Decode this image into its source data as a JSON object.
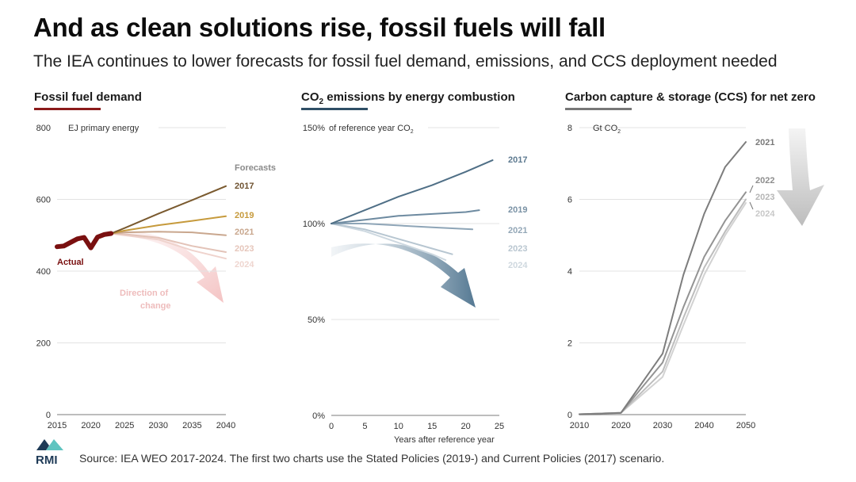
{
  "header": {
    "title": "And as clean solutions rise, fossil fuels will fall",
    "subtitle": "The IEA continues to lower forecasts for fossil fuel demand, emissions, and CCS deployment needed"
  },
  "footer": {
    "logo_text": "RMI",
    "source": "Source: IEA WEO 2017-2024. The first two charts use the Stated Policies (2019-) and Current Policies (2017) scenario."
  },
  "colors": {
    "fossil_accent": "#8b1a1a",
    "co2_accent": "#3b5f78",
    "ccs_accent": "#777777"
  },
  "chart_data": [
    {
      "id": "fossil",
      "type": "line",
      "title": "Fossil fuel demand",
      "ylabel": "EJ primary energy",
      "xlabel": "",
      "xlim": [
        2015,
        2040
      ],
      "ylim": [
        0,
        800
      ],
      "x_ticks": [
        "2015",
        "2020",
        "2025",
        "2030",
        "2035",
        "2040"
      ],
      "y_ticks": [
        "0",
        "200",
        "400",
        "600",
        "800"
      ],
      "grid": true,
      "annotations": [
        "Forecasts",
        "Actual",
        "Direction of",
        "change"
      ],
      "series": [
        {
          "name": "Actual",
          "color": "#7a1010",
          "x": [
            2015,
            2016,
            2017,
            2018,
            2019,
            2020,
            2021,
            2022,
            2023
          ],
          "y": [
            468,
            470,
            480,
            490,
            494,
            465,
            495,
            502,
            505
          ]
        },
        {
          "name": "2017",
          "color": "#7a5a2f",
          "x": [
            2023,
            2025,
            2030,
            2035,
            2040
          ],
          "y": [
            505,
            520,
            560,
            598,
            637
          ]
        },
        {
          "name": "2019",
          "color": "#c69a3c",
          "x": [
            2023,
            2025,
            2030,
            2035,
            2040
          ],
          "y": [
            505,
            513,
            528,
            540,
            553
          ]
        },
        {
          "name": "2021",
          "color": "#c9a78e",
          "x": [
            2023,
            2025,
            2030,
            2035,
            2040
          ],
          "y": [
            505,
            508,
            510,
            508,
            500
          ]
        },
        {
          "name": "2023",
          "color": "#e3c3b8",
          "x": [
            2023,
            2025,
            2030,
            2035,
            2040
          ],
          "y": [
            505,
            503,
            493,
            470,
            453
          ]
        },
        {
          "name": "2024",
          "color": "#efd3cd",
          "x": [
            2023,
            2025,
            2030,
            2035,
            2040
          ],
          "y": [
            505,
            500,
            488,
            458,
            435
          ]
        }
      ]
    },
    {
      "id": "co2",
      "type": "line",
      "title": "CO2 emissions by energy combustion",
      "ylabel": "of reference year CO2",
      "xlabel": "Years after reference year",
      "xlim": [
        0,
        25
      ],
      "ylim": [
        0,
        150
      ],
      "x_ticks": [
        "0",
        "5",
        "10",
        "15",
        "20",
        "25"
      ],
      "y_ticks": [
        "0%",
        "50%",
        "100%",
        "150%"
      ],
      "grid": true,
      "series": [
        {
          "name": "2017",
          "color": "#4f6f86",
          "x": [
            0,
            5,
            10,
            15,
            20,
            24
          ],
          "y": [
            100,
            107,
            114,
            120,
            127,
            133
          ]
        },
        {
          "name": "2019",
          "color": "#6d8aa0",
          "x": [
            0,
            5,
            10,
            15,
            20,
            22
          ],
          "y": [
            100,
            102,
            104,
            105,
            106,
            107
          ]
        },
        {
          "name": "2021",
          "color": "#8ea5b7",
          "x": [
            0,
            5,
            10,
            15,
            21
          ],
          "y": [
            100,
            100,
            99,
            98,
            97
          ]
        },
        {
          "name": "2023",
          "color": "#b7c6d1",
          "x": [
            0,
            5,
            10,
            15,
            18
          ],
          "y": [
            100,
            97,
            92,
            87,
            84
          ]
        },
        {
          "name": "2024",
          "color": "#cdd8e0",
          "x": [
            0,
            5,
            10,
            15,
            17
          ],
          "y": [
            100,
            96,
            90,
            84,
            81
          ]
        }
      ]
    },
    {
      "id": "ccs",
      "type": "line",
      "title": "Carbon capture & storage (CCS) for net zero",
      "ylabel": "Gt CO2",
      "xlabel": "",
      "xlim": [
        2010,
        2050
      ],
      "ylim": [
        0,
        8
      ],
      "x_ticks": [
        "2010",
        "2020",
        "2030",
        "2040",
        "2050"
      ],
      "y_ticks": [
        "0",
        "2",
        "4",
        "6",
        "8"
      ],
      "grid": true,
      "series": [
        {
          "name": "2021",
          "color": "#7d7d7d",
          "x": [
            2010,
            2015,
            2020,
            2030,
            2035,
            2040,
            2045,
            2050
          ],
          "y": [
            0.01,
            0.02,
            0.05,
            1.7,
            3.9,
            5.6,
            6.9,
            7.6
          ]
        },
        {
          "name": "2022",
          "color": "#939393",
          "x": [
            2010,
            2020,
            2030,
            2035,
            2040,
            2045,
            2050
          ],
          "y": [
            0.01,
            0.05,
            1.45,
            3.0,
            4.4,
            5.4,
            6.2
          ]
        },
        {
          "name": "2023",
          "color": "#bdbdbd",
          "x": [
            2010,
            2020,
            2030,
            2035,
            2040,
            2045,
            2050
          ],
          "y": [
            0.01,
            0.05,
            1.2,
            2.7,
            4.1,
            5.1,
            6.0
          ]
        },
        {
          "name": "2024",
          "color": "#d2d2d2",
          "x": [
            2010,
            2020,
            2030,
            2035,
            2040,
            2045,
            2050
          ],
          "y": [
            0.01,
            0.05,
            1.05,
            2.5,
            3.9,
            5.0,
            5.9
          ]
        }
      ]
    }
  ]
}
